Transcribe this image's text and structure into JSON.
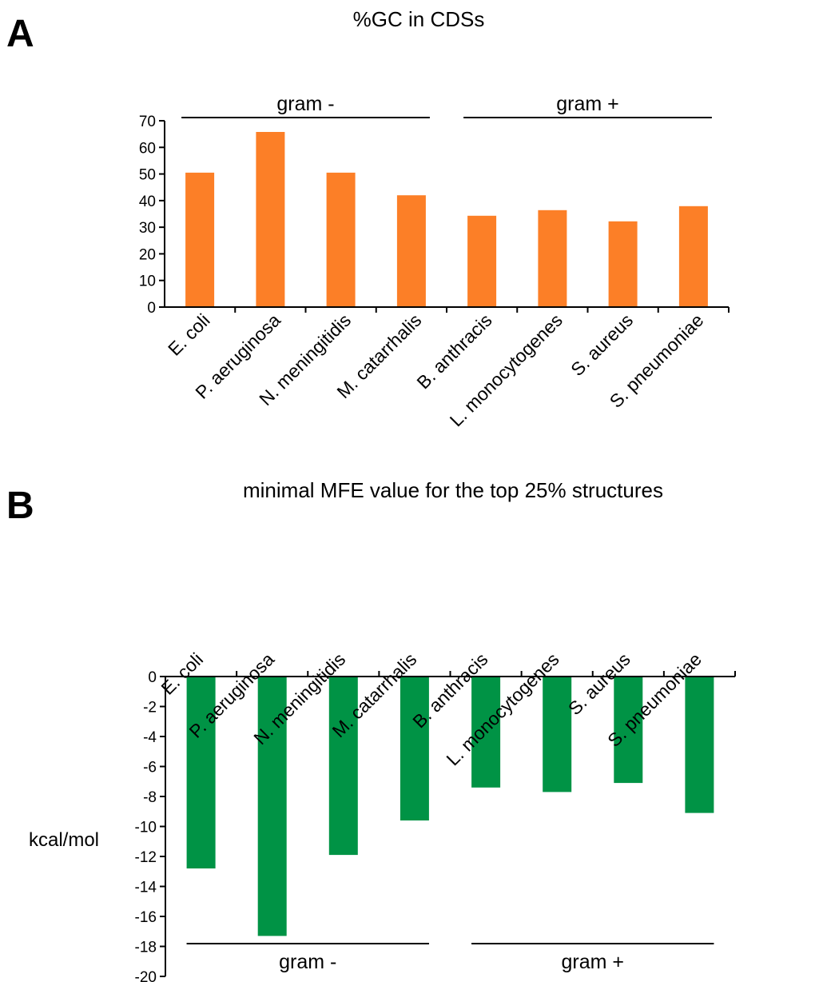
{
  "panels": {
    "a_label": "A",
    "b_label": "B"
  },
  "chart_data": [
    {
      "type": "bar",
      "title": "%GC in CDSs",
      "xlabel": "",
      "ylabel": "",
      "ylim": [
        0,
        70
      ],
      "yticks": [
        "70",
        "60",
        "50",
        "40",
        "30",
        "20",
        "10",
        "0"
      ],
      "categories": [
        "E. coli",
        "P. aeruginosa",
        "N. meningitidis",
        "M. catarrhalis",
        "B. anthracis",
        "L. monocytogenes",
        "S. aureus",
        "S. pneumoniae"
      ],
      "values": [
        50.5,
        65.8,
        50.5,
        42.0,
        34.3,
        36.4,
        32.2,
        37.9
      ],
      "bar_color": "#fc7f27",
      "groups": [
        {
          "label": "gram -",
          "categories": [
            "E. coli",
            "P. aeruginosa",
            "N. meningitidis",
            "M. catarrhalis"
          ]
        },
        {
          "label": "gram +",
          "categories": [
            "B. anthracis",
            "L. monocytogenes",
            "S. aureus",
            "S. pneumoniae"
          ]
        }
      ],
      "group_placement": "top",
      "grid": false
    },
    {
      "type": "bar",
      "title": "minimal MFE value for the top 25% structures",
      "xlabel": "",
      "ylabel": "kcal/mol",
      "ylim": [
        -20,
        0
      ],
      "yticks": [
        "0",
        "-2",
        "-4",
        "-6",
        "-8",
        "-10",
        "-12",
        "-14",
        "-16",
        "-18",
        "-20"
      ],
      "categories": [
        "E. coli",
        "P. aeruginosa",
        "N. meningitidis",
        "M. catarrhalis",
        "B. anthracis",
        "L. monocytogenes",
        "S. aureus",
        "S. pneumoniae"
      ],
      "values": [
        -12.8,
        -17.3,
        -11.9,
        -9.6,
        -7.4,
        -7.7,
        -7.1,
        -9.1
      ],
      "bar_color": "#009345",
      "groups": [
        {
          "label": "gram -",
          "categories": [
            "E. coli",
            "P. aeruginosa",
            "N. meningitidis",
            "M. catarrhalis"
          ]
        },
        {
          "label": "gram +",
          "categories": [
            "B. anthracis",
            "L. monocytogenes",
            "S. aureus",
            "S. pneumoniae"
          ]
        }
      ],
      "group_placement": "bottom",
      "grid": false
    }
  ]
}
